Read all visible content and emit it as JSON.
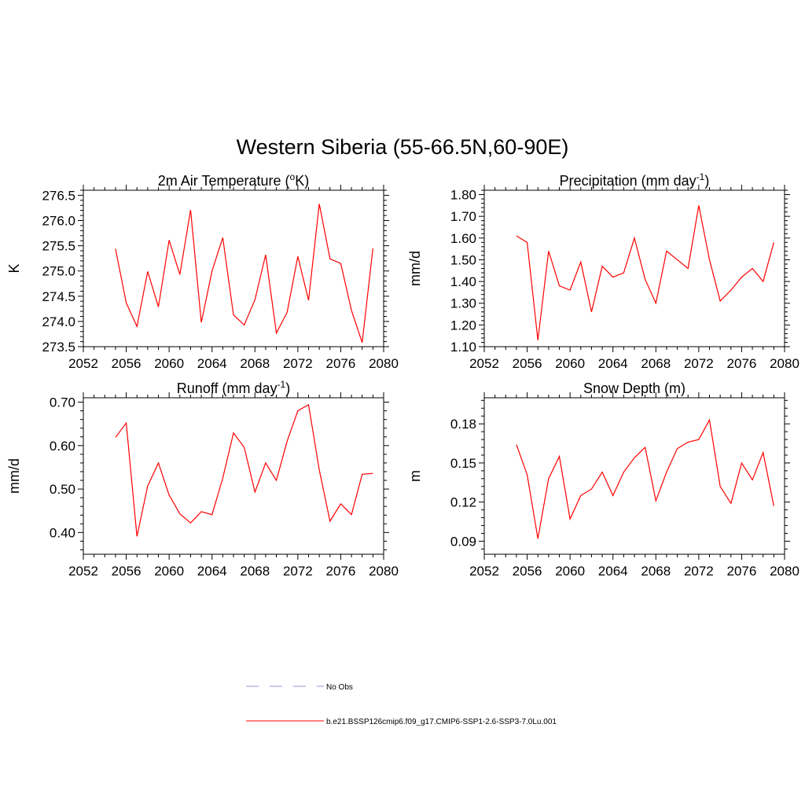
{
  "figure": {
    "title": "Western Siberia (55-66.5N,60-90E)",
    "line_color": "#ff0000",
    "obs_color": "#aaaadd"
  },
  "legend": {
    "placement": "bottom-center",
    "entries": [
      {
        "label": "No Obs",
        "style": "dashed",
        "color": "#aaaadd"
      },
      {
        "label": "b.e21.BSSP126cmip6.f09_g17.CMIP6-SSP1-2.6-SSP3-7.0Lu.001",
        "style": "solid",
        "color": "#ff0000"
      }
    ]
  },
  "chart_data": [
    {
      "type": "line",
      "title": "2m Air Temperature (",
      "title_sup": "o",
      "title_after": "K)",
      "ylabel": "K",
      "xlim": [
        2052,
        2080
      ],
      "ylim": [
        273.5,
        276.6
      ],
      "xticks": [
        2052,
        2056,
        2060,
        2064,
        2068,
        2072,
        2076,
        2080
      ],
      "yticks": [
        273.5,
        274.0,
        274.5,
        275.0,
        275.5,
        276.0,
        276.5
      ],
      "ytick_labels": [
        "273.5",
        "274.0",
        "274.5",
        "275.0",
        "275.5",
        "276.0",
        "276.5"
      ],
      "x": [
        2055,
        2056,
        2057,
        2058,
        2059,
        2060,
        2061,
        2062,
        2063,
        2064,
        2065,
        2066,
        2067,
        2068,
        2069,
        2070,
        2071,
        2072,
        2073,
        2074,
        2075,
        2076,
        2077,
        2078,
        2079
      ],
      "series": [
        {
          "values": [
            275.44,
            274.37,
            273.9,
            274.99,
            274.29,
            275.61,
            274.93,
            276.21,
            273.98,
            275.0,
            275.66,
            274.13,
            273.93,
            274.43,
            275.32,
            273.77,
            274.18,
            275.29,
            274.42,
            276.33,
            275.24,
            275.15,
            274.22,
            273.58,
            275.45
          ]
        }
      ]
    },
    {
      "type": "line",
      "title": "Precipitation (mm day",
      "title_sup": "-1",
      "title_after": ")",
      "ylabel": "mm/d",
      "xlim": [
        2052,
        2080
      ],
      "ylim": [
        1.1,
        1.82
      ],
      "xticks": [
        2052,
        2056,
        2060,
        2064,
        2068,
        2072,
        2076,
        2080
      ],
      "yticks": [
        1.1,
        1.2,
        1.3,
        1.4,
        1.5,
        1.6,
        1.7,
        1.8
      ],
      "ytick_labels": [
        "1.10",
        "1.20",
        "1.30",
        "1.40",
        "1.50",
        "1.60",
        "1.70",
        "1.80"
      ],
      "x": [
        2055,
        2056,
        2057,
        2058,
        2059,
        2060,
        2061,
        2062,
        2063,
        2064,
        2065,
        2066,
        2067,
        2068,
        2069,
        2070,
        2071,
        2072,
        2073,
        2074,
        2075,
        2076,
        2077,
        2078,
        2079
      ],
      "series": [
        {
          "values": [
            1.61,
            1.58,
            1.13,
            1.54,
            1.38,
            1.36,
            1.49,
            1.26,
            1.47,
            1.42,
            1.44,
            1.6,
            1.41,
            1.3,
            1.54,
            1.5,
            1.46,
            1.75,
            1.5,
            1.31,
            1.36,
            1.42,
            1.46,
            1.4,
            1.58
          ]
        }
      ]
    },
    {
      "type": "line",
      "title": "Runoff (mm day",
      "title_sup": "-1",
      "title_after": ")",
      "ylabel": "mm/d",
      "xlim": [
        2052,
        2080
      ],
      "ylim": [
        0.35,
        0.71
      ],
      "xticks": [
        2052,
        2056,
        2060,
        2064,
        2068,
        2072,
        2076,
        2080
      ],
      "yticks": [
        0.4,
        0.5,
        0.6,
        0.7
      ],
      "ytick_labels": [
        "0.40",
        "0.50",
        "0.60",
        "0.70"
      ],
      "x": [
        2055,
        2056,
        2057,
        2058,
        2059,
        2060,
        2061,
        2062,
        2063,
        2064,
        2065,
        2066,
        2067,
        2068,
        2069,
        2070,
        2071,
        2072,
        2073,
        2074,
        2075,
        2076,
        2077,
        2078,
        2079
      ],
      "series": [
        {
          "values": [
            0.619,
            0.652,
            0.391,
            0.507,
            0.56,
            0.486,
            0.443,
            0.422,
            0.448,
            0.441,
            0.525,
            0.629,
            0.596,
            0.493,
            0.56,
            0.52,
            0.61,
            0.68,
            0.694,
            0.544,
            0.426,
            0.466,
            0.441,
            0.534,
            0.536
          ]
        }
      ]
    },
    {
      "type": "line",
      "title": "Snow Depth (m)",
      "title_sup": "",
      "title_after": "",
      "ylabel": "m",
      "xlim": [
        2052,
        2080
      ],
      "ylim": [
        0.08,
        0.2
      ],
      "xticks": [
        2052,
        2056,
        2060,
        2064,
        2068,
        2072,
        2076,
        2080
      ],
      "yticks": [
        0.09,
        0.12,
        0.15,
        0.18
      ],
      "ytick_labels": [
        "0.09",
        "0.12",
        "0.15",
        "0.18"
      ],
      "x": [
        2055,
        2056,
        2057,
        2058,
        2059,
        2060,
        2061,
        2062,
        2063,
        2064,
        2065,
        2066,
        2067,
        2068,
        2069,
        2070,
        2071,
        2072,
        2073,
        2074,
        2075,
        2076,
        2077,
        2078,
        2079
      ],
      "series": [
        {
          "values": [
            0.164,
            0.141,
            0.092,
            0.138,
            0.155,
            0.107,
            0.125,
            0.13,
            0.143,
            0.125,
            0.143,
            0.154,
            0.162,
            0.121,
            0.143,
            0.161,
            0.166,
            0.168,
            0.183,
            0.132,
            0.119,
            0.15,
            0.137,
            0.158,
            0.117
          ]
        }
      ]
    }
  ]
}
